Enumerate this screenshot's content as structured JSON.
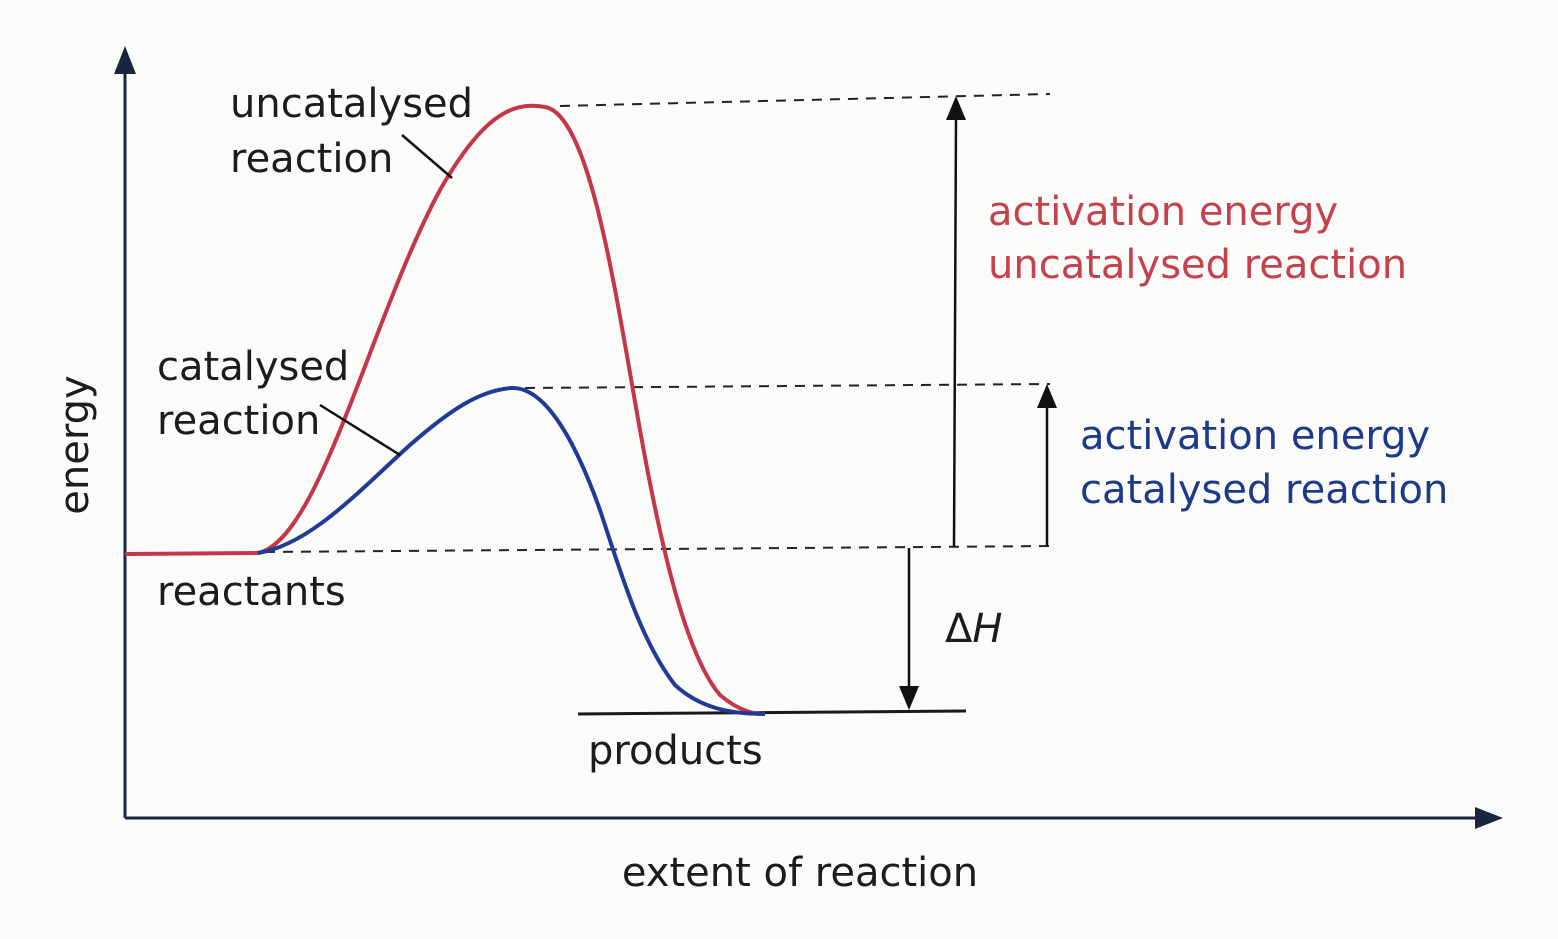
{
  "axes": {
    "x_label": "extent of reaction",
    "y_label": "energy"
  },
  "curves": {
    "uncatalysed": {
      "label_line1": "uncatalysed",
      "label_line2": "reaction",
      "color": "#c4364a"
    },
    "catalysed": {
      "label_line1": "catalysed",
      "label_line2": "reaction",
      "color": "#1f3b96"
    }
  },
  "levels": {
    "reactants": "reactants",
    "products": "products"
  },
  "annotations": {
    "ea_uncatalysed_line1": "activation energy",
    "ea_uncatalysed_line2": "uncatalysed reaction",
    "ea_catalysed_line1": "activation energy",
    "ea_catalysed_line2": "catalysed reaction",
    "delta_h_symbol": "Δ",
    "delta_h_var": "H"
  },
  "colors": {
    "axis": "#1a2540",
    "uncatalysed_text": "#c4414e",
    "catalysed_text": "#1d3a8a"
  }
}
